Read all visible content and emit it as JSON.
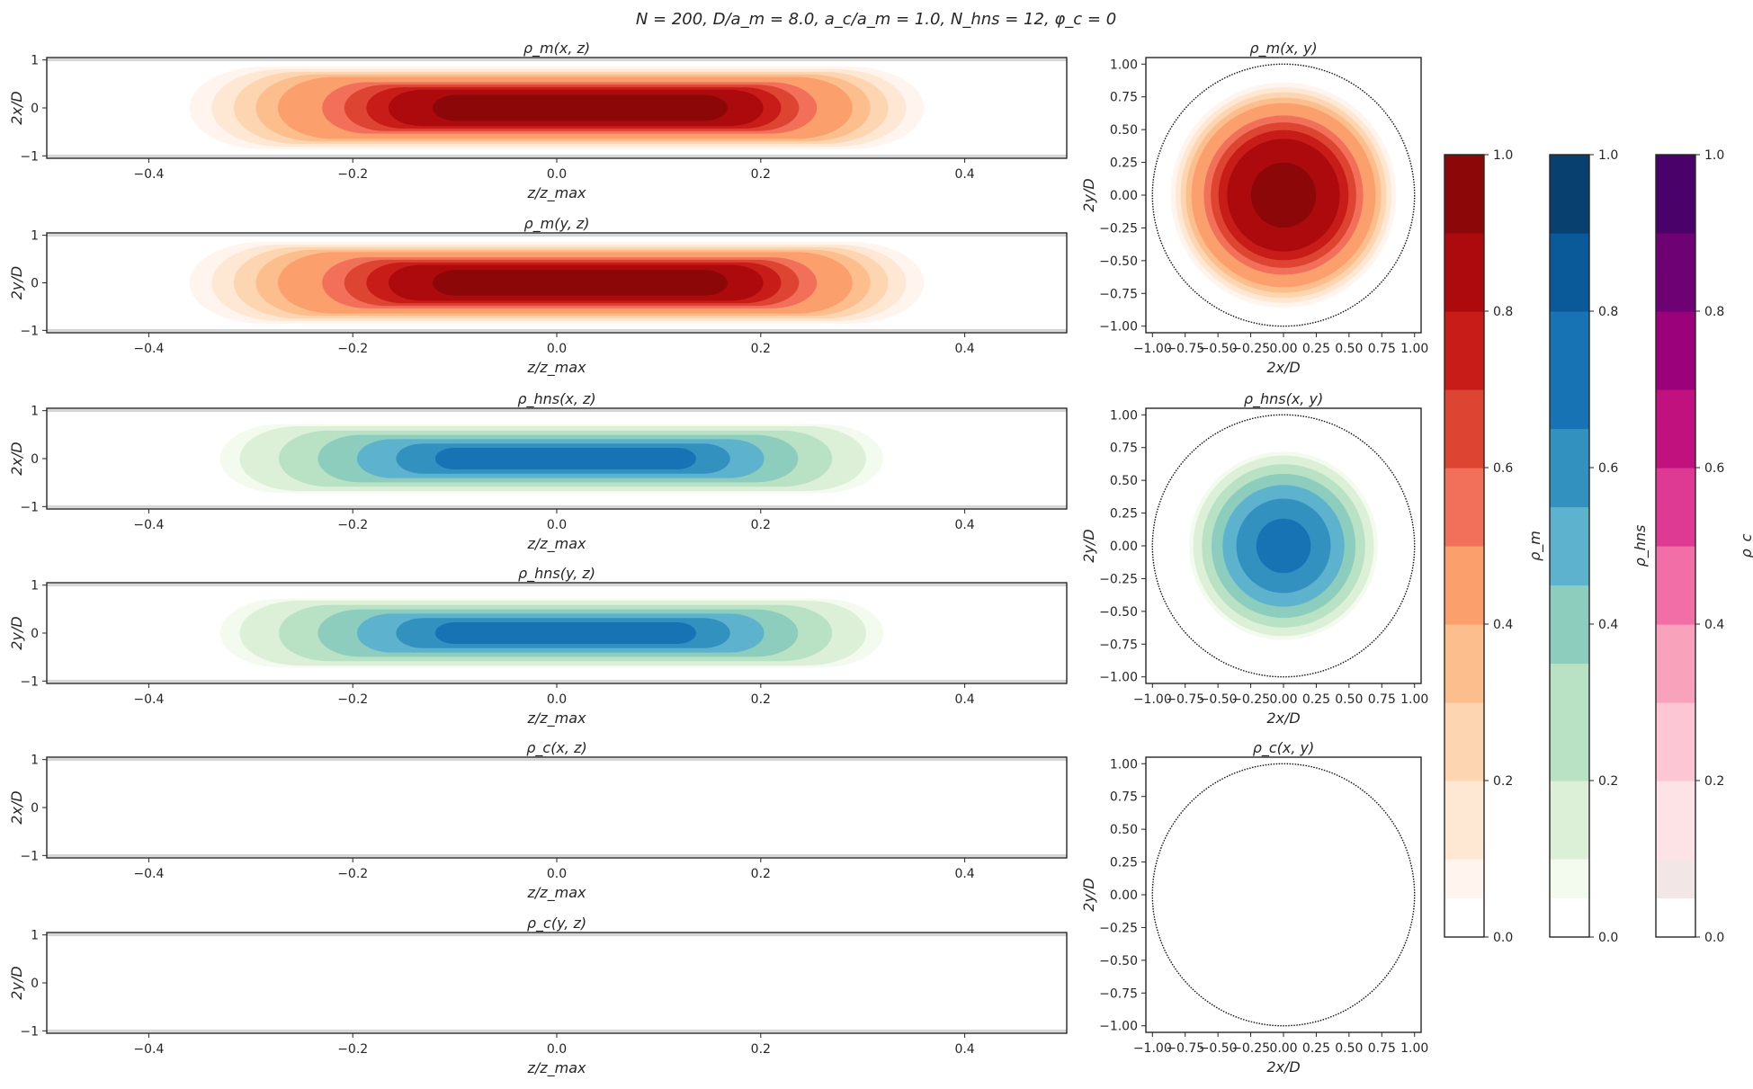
{
  "figure_title": "N = 200, D/a_m = 8.0, a_c/a_m = 1.0, N_hns = 12, φ_c = 0",
  "colors": {
    "m": [
      "#fff5ee",
      "#fee8d4",
      "#fdd5b0",
      "#fcbe8c",
      "#fb9f6c",
      "#f2705a",
      "#de4432",
      "#c81c19",
      "#ad0a0e",
      "#8c0808"
    ],
    "hns": [
      "#f3fbef",
      "#dcf0d8",
      "#b9e2c4",
      "#8ccdbe",
      "#5db3cd",
      "#3391c0",
      "#1873b4",
      "#0a5a9a",
      "#08406f"
    ],
    "c": [
      "#f2e6e6",
      "#fde2e6",
      "#fcc6d4",
      "#f9a2bc",
      "#f26ea6",
      "#df3a93",
      "#c0117e",
      "#9a017a",
      "#6e0174",
      "#4a016a"
    ]
  },
  "chart_data": [
    {
      "type": "heatmap",
      "title": "ρ_m(x, z)",
      "xlabel": "z/z_max",
      "ylabel": "2x/D",
      "xlim": [
        -0.5,
        0.5
      ],
      "ylim": [
        -1.05,
        1.05
      ],
      "xticks": [
        "-0.4",
        "-0.2",
        "0.0",
        "0.2",
        "0.4"
      ],
      "yticks": [
        "1",
        "0",
        "-1"
      ],
      "profile": {
        "z_extent": [
          -0.36,
          0.36
        ],
        "radial_extent": 0.86,
        "peak_z": [
          -0.1,
          0.15
        ],
        "peak": 1.0,
        "colormap": "m"
      }
    },
    {
      "type": "heatmap",
      "title": "ρ_m(y, z)",
      "xlabel": "z/z_max",
      "ylabel": "2y/D",
      "xlim": [
        -0.5,
        0.5
      ],
      "ylim": [
        -1.05,
        1.05
      ],
      "xticks": [
        "-0.4",
        "-0.2",
        "0.0",
        "0.2",
        "0.4"
      ],
      "yticks": [
        "1",
        "0",
        "-1"
      ],
      "profile": {
        "z_extent": [
          -0.36,
          0.36
        ],
        "radial_extent": 0.86,
        "peak_z": [
          -0.1,
          0.15
        ],
        "peak": 1.0,
        "colormap": "m"
      }
    },
    {
      "type": "heatmap",
      "title": "ρ_hns(x, z)",
      "xlabel": "z/z_max",
      "ylabel": "2x/D",
      "xlim": [
        -0.5,
        0.5
      ],
      "ylim": [
        -1.05,
        1.05
      ],
      "xticks": [
        "-0.4",
        "-0.2",
        "0.0",
        "0.2",
        "0.4"
      ],
      "yticks": [
        "1",
        "0",
        "-1"
      ],
      "profile": {
        "z_extent": [
          -0.33,
          0.32
        ],
        "radial_extent": 0.72,
        "peak_z": [
          -0.1,
          0.12
        ],
        "peak": 0.72,
        "colormap": "hns"
      }
    },
    {
      "type": "heatmap",
      "title": "ρ_hns(y, z)",
      "xlabel": "z/z_max",
      "ylabel": "2y/D",
      "xlim": [
        -0.5,
        0.5
      ],
      "ylim": [
        -1.05,
        1.05
      ],
      "xticks": [
        "-0.4",
        "-0.2",
        "0.0",
        "0.2",
        "0.4"
      ],
      "yticks": [
        "1",
        "0",
        "-1"
      ],
      "profile": {
        "z_extent": [
          -0.33,
          0.32
        ],
        "radial_extent": 0.72,
        "peak_z": [
          -0.1,
          0.12
        ],
        "peak": 0.72,
        "colormap": "hns"
      }
    },
    {
      "type": "heatmap",
      "title": "ρ_c(x, z)",
      "xlabel": "z/z_max",
      "ylabel": "2x/D",
      "xlim": [
        -0.5,
        0.5
      ],
      "ylim": [
        -1.05,
        1.05
      ],
      "xticks": [
        "-0.4",
        "-0.2",
        "0.0",
        "0.2",
        "0.4"
      ],
      "yticks": [
        "1",
        "0",
        "-1"
      ],
      "profile": null
    },
    {
      "type": "heatmap",
      "title": "ρ_c(y, z)",
      "xlabel": "z/z_max",
      "ylabel": "2y/D",
      "xlim": [
        -0.5,
        0.5
      ],
      "ylim": [
        -1.05,
        1.05
      ],
      "xticks": [
        "-0.4",
        "-0.2",
        "0.0",
        "0.2",
        "0.4"
      ],
      "yticks": [
        "1",
        "0",
        "-1"
      ],
      "profile": null
    },
    {
      "type": "heatmap",
      "title": "ρ_m(x, y)",
      "xlabel": "2x/D",
      "ylabel": "2y/D",
      "xlim": [
        -1.05,
        1.05
      ],
      "ylim": [
        -1.05,
        1.05
      ],
      "xticks": [
        "-1.00",
        "-0.75",
        "-0.50",
        "-0.25",
        "0.00",
        "0.25",
        "0.50",
        "0.75",
        "1.00"
      ],
      "yticks": [
        "1.00",
        "0.75",
        "0.50",
        "0.25",
        "0.00",
        "-0.25",
        "-0.50",
        "-0.75",
        "-1.00"
      ],
      "boundary_circle_radius": 1.0,
      "profile": {
        "radial_extent": 0.86,
        "peak": 1.0,
        "colormap": "m"
      }
    },
    {
      "type": "heatmap",
      "title": "ρ_hns(x, y)",
      "xlabel": "2x/D",
      "ylabel": "2y/D",
      "xlim": [
        -1.05,
        1.05
      ],
      "ylim": [
        -1.05,
        1.05
      ],
      "xticks": [
        "-1.00",
        "-0.75",
        "-0.50",
        "-0.25",
        "0.00",
        "0.25",
        "0.50",
        "0.75",
        "1.00"
      ],
      "yticks": [
        "1.00",
        "0.75",
        "0.50",
        "0.25",
        "0.00",
        "-0.25",
        "-0.50",
        "-0.75",
        "-1.00"
      ],
      "boundary_circle_radius": 1.0,
      "profile": {
        "radial_extent": 0.72,
        "peak": 0.72,
        "colormap": "hns"
      }
    },
    {
      "type": "heatmap",
      "title": "ρ_c(x, y)",
      "xlabel": "2x/D",
      "ylabel": "2y/D",
      "xlim": [
        -1.05,
        1.05
      ],
      "ylim": [
        -1.05,
        1.05
      ],
      "xticks": [
        "-1.00",
        "-0.75",
        "-0.50",
        "-0.25",
        "0.00",
        "0.25",
        "0.50",
        "0.75",
        "1.00"
      ],
      "yticks": [
        "1.00",
        "0.75",
        "0.50",
        "0.25",
        "0.00",
        "-0.25",
        "-0.50",
        "-0.75",
        "-1.00"
      ],
      "boundary_circle_radius": 1.0,
      "profile": null
    },
    {
      "type": "colorbar",
      "label": "ρ_m",
      "range": [
        0,
        1
      ],
      "ticks": [
        "0.0",
        "0.2",
        "0.4",
        "0.6",
        "0.8",
        "1.0"
      ],
      "levels": 20,
      "colormap": "m"
    },
    {
      "type": "colorbar",
      "label": "ρ_hns",
      "range": [
        0,
        1
      ],
      "ticks": [
        "0.0",
        "0.2",
        "0.4",
        "0.6",
        "0.8",
        "1.0"
      ],
      "levels": 20,
      "colormap": "hns"
    },
    {
      "type": "colorbar",
      "label": "ρ_c",
      "range": [
        0,
        1
      ],
      "ticks": [
        "0.0",
        "0.2",
        "0.4",
        "0.6",
        "0.8",
        "1.0"
      ],
      "levels": 20,
      "colormap": "c"
    }
  ]
}
